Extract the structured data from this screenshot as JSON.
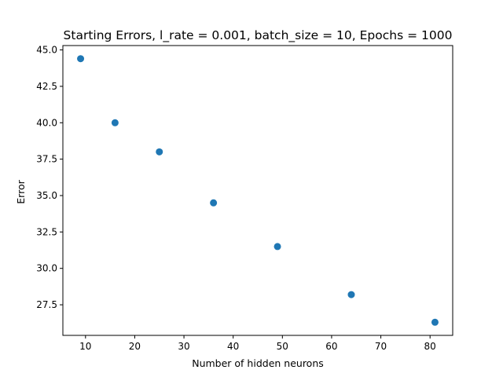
{
  "chart_data": {
    "type": "scatter",
    "title": "Starting Errors, l_rate = 0.001, batch_size = 10, Epochs = 1000",
    "xlabel": "Number of hidden neurons",
    "ylabel": "Error",
    "xlim": [
      5.4,
      84.6
    ],
    "ylim": [
      25.4,
      45.3
    ],
    "xticks": [
      10,
      20,
      30,
      40,
      50,
      60,
      70,
      80
    ],
    "yticks": [
      27.5,
      30.0,
      32.5,
      35.0,
      37.5,
      40.0,
      42.5,
      45.0
    ],
    "xtick_labels": [
      "10",
      "20",
      "30",
      "40",
      "50",
      "60",
      "70",
      "80"
    ],
    "ytick_labels": [
      "27.5",
      "30.0",
      "32.5",
      "35.0",
      "37.5",
      "40.0",
      "42.5",
      "45.0"
    ],
    "grid": false,
    "series": [
      {
        "color": "#1f77b4",
        "points": [
          {
            "x": 9,
            "y": 44.4
          },
          {
            "x": 16,
            "y": 40.0
          },
          {
            "x": 25,
            "y": 38.0
          },
          {
            "x": 36,
            "y": 34.5
          },
          {
            "x": 49,
            "y": 31.5
          },
          {
            "x": 64,
            "y": 28.2
          },
          {
            "x": 81,
            "y": 26.3
          }
        ]
      }
    ]
  }
}
